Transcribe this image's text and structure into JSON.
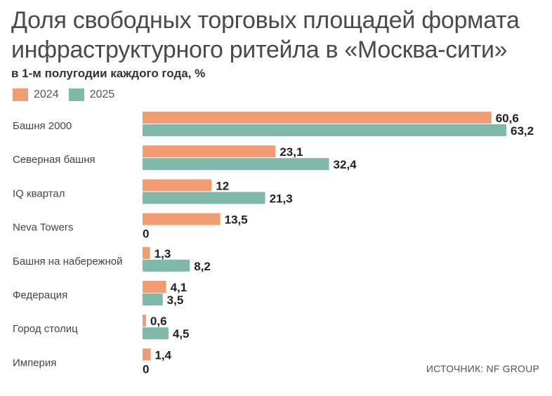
{
  "title": "Доля свободных торговых площадей формата инфраструктурного ритейла в «Москва-сити»",
  "subtitle": "в 1-м полугодии каждого года, %",
  "source": "ИСТОЧНИК: NF GROUP",
  "colors": {
    "2024": "#f29b72",
    "2025": "#80b8aa"
  },
  "chart_data": {
    "type": "bar",
    "orientation": "horizontal",
    "title": "Доля свободных торговых площадей формата инфраструктурного ритейла в «Москва-сити»",
    "subtitle": "в 1-м полугодии каждого года, %",
    "categories": [
      "Башня 2000",
      "Северная башня",
      "IQ квартал",
      "Neva Towers",
      "Башня на набережной",
      "Федерация",
      "Город столиц",
      "Империя"
    ],
    "series": [
      {
        "name": "2024",
        "values": [
          60.6,
          23.1,
          12,
          13.5,
          1.3,
          4.1,
          0.6,
          1.4
        ],
        "labels": [
          "60,6",
          "23,1",
          "12",
          "13,5",
          "1,3",
          "4,1",
          "0,6",
          "1,4"
        ]
      },
      {
        "name": "2025",
        "values": [
          63.2,
          32.4,
          21.3,
          0,
          8.2,
          3.5,
          4.5,
          0
        ],
        "labels": [
          "63,2",
          "32,4",
          "21,3",
          "0",
          "8,2",
          "3,5",
          "4,5",
          "0"
        ]
      }
    ],
    "xlim": [
      0,
      63.2
    ],
    "legend": "top-left",
    "grid": false
  }
}
